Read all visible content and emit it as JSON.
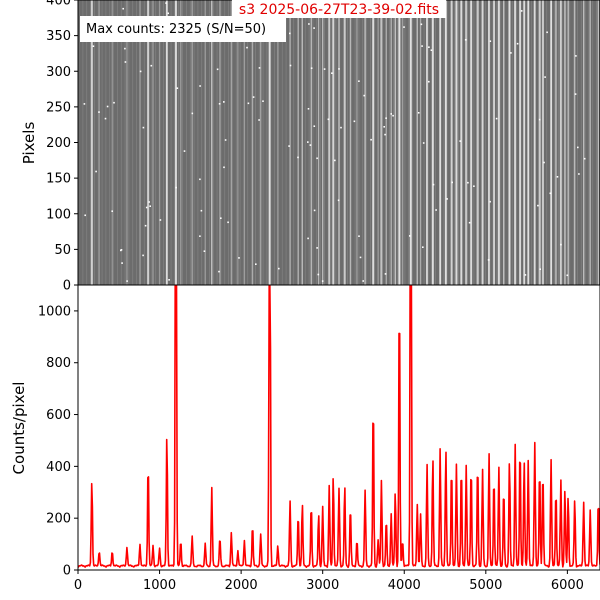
{
  "image_panel": {
    "title": "s3  2025-06-27T23-39-02.fits",
    "title_color": "#e00000",
    "note": "Max counts: 2325 (S/N=50)",
    "ylabel": "Pixels",
    "ylim": [
      0,
      400
    ],
    "yticks": [
      "0",
      "50",
      "100",
      "150",
      "200",
      "250",
      "300",
      "350",
      "400"
    ],
    "background_color": "#6c6c6c",
    "lines_color": "#e8e8e8"
  },
  "chart_data": {
    "type": "line",
    "title": "",
    "xlabel": "",
    "ylabel": "Counts/pixel",
    "xlim": [
      0,
      6400
    ],
    "ylim": [
      0,
      1100
    ],
    "xticks": [
      "0",
      "1000",
      "2000",
      "3000",
      "4000",
      "5000",
      "6000"
    ],
    "yticks": [
      "0",
      "200",
      "400",
      "600",
      "800",
      "1000"
    ],
    "series": [
      {
        "color": "#ff0000",
        "baseline": 10,
        "peaks": [
          [
            170,
            335
          ],
          [
            260,
            60
          ],
          [
            420,
            60
          ],
          [
            600,
            75
          ],
          [
            760,
            85
          ],
          [
            860,
            405
          ],
          [
            920,
            80
          ],
          [
            1000,
            70
          ],
          [
            1090,
            510
          ],
          [
            1200,
            2325
          ],
          [
            1260,
            100
          ],
          [
            1400,
            115
          ],
          [
            1560,
            85
          ],
          [
            1640,
            300
          ],
          [
            1740,
            110
          ],
          [
            1880,
            130
          ],
          [
            1960,
            60
          ],
          [
            2040,
            100
          ],
          [
            2140,
            160
          ],
          [
            2240,
            120
          ],
          [
            2350,
            2325
          ],
          [
            2450,
            80
          ],
          [
            2600,
            250
          ],
          [
            2700,
            200
          ],
          [
            2750,
            240
          ],
          [
            2860,
            240
          ],
          [
            2950,
            200
          ],
          [
            3000,
            230
          ],
          [
            3080,
            310
          ],
          [
            3130,
            350
          ],
          [
            3200,
            300
          ],
          [
            3270,
            310
          ],
          [
            3340,
            230
          ],
          [
            3420,
            100
          ],
          [
            3520,
            290
          ],
          [
            3620,
            645
          ],
          [
            3680,
            100
          ],
          [
            3720,
            330
          ],
          [
            3780,
            180
          ],
          [
            3840,
            200
          ],
          [
            3890,
            290
          ],
          [
            3940,
            1055
          ],
          [
            3980,
            100
          ],
          [
            4080,
            2325
          ],
          [
            4160,
            240
          ],
          [
            4200,
            200
          ],
          [
            4280,
            390
          ],
          [
            4350,
            420
          ],
          [
            4440,
            450
          ],
          [
            4510,
            460
          ],
          [
            4580,
            390
          ],
          [
            4640,
            390
          ],
          [
            4700,
            385
          ],
          [
            4760,
            390
          ],
          [
            4820,
            390
          ],
          [
            4900,
            400
          ],
          [
            4960,
            370
          ],
          [
            5040,
            430
          ],
          [
            5100,
            350
          ],
          [
            5160,
            380
          ],
          [
            5220,
            300
          ],
          [
            5290,
            410
          ],
          [
            5360,
            470
          ],
          [
            5420,
            470
          ],
          [
            5470,
            410
          ],
          [
            5520,
            410
          ],
          [
            5600,
            480
          ],
          [
            5660,
            380
          ],
          [
            5700,
            370
          ],
          [
            5800,
            410
          ],
          [
            5860,
            300
          ],
          [
            5920,
            330
          ],
          [
            5970,
            300
          ],
          [
            6010,
            270
          ],
          [
            6090,
            260
          ],
          [
            6200,
            250
          ],
          [
            6280,
            220
          ],
          [
            6380,
            260
          ]
        ]
      }
    ],
    "grid": false
  }
}
